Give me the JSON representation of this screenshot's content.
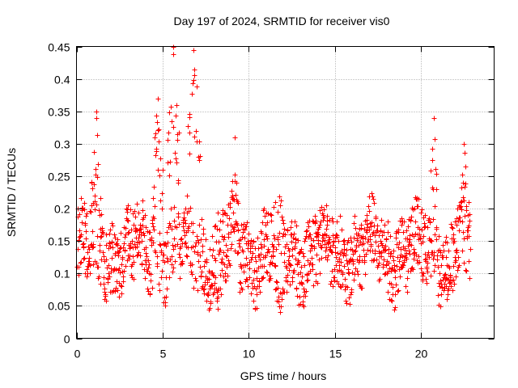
{
  "chart_data": {
    "type": "scatter",
    "title": "Day 197 of 2024, SRMTID for receiver vis0",
    "xlabel": "GPS time / hours",
    "ylabel": "SRMTID / TECUs",
    "xlim": [
      0,
      24.25
    ],
    "ylim": [
      0,
      0.45
    ],
    "xticks": [
      0,
      5,
      10,
      15,
      20
    ],
    "xtick_labels": [
      "0",
      "5",
      "10",
      "15",
      "20"
    ],
    "yticks": [
      0,
      0.05,
      0.1,
      0.15,
      0.2,
      0.25,
      0.3,
      0.35,
      0.4,
      0.45
    ],
    "ytick_labels": [
      "0",
      "0.05",
      "0.1",
      "0.15",
      "0.2",
      "0.25",
      "0.3",
      "0.35",
      "0.4",
      "0.45"
    ],
    "grid": true,
    "marker": "+",
    "color": "#ff0000",
    "series": [
      {
        "name": "vis0",
        "note": "dense scatter of SRMTID samples over ~23 h; baseline 0.10–0.20 TECU with excursions",
        "x_range": [
          0.05,
          22.85
        ],
        "baseline_y_range": [
          0.1,
          0.2
        ],
        "peaks": [
          {
            "x": 1.15,
            "y": 0.35
          },
          {
            "x": 4.7,
            "y": 0.37
          },
          {
            "x": 5.6,
            "y": 0.45
          },
          {
            "x": 6.8,
            "y": 0.445
          },
          {
            "x": 9.2,
            "y": 0.31
          },
          {
            "x": 20.75,
            "y": 0.34
          },
          {
            "x": 22.5,
            "y": 0.3
          }
        ],
        "minima": [
          {
            "x": 8.2,
            "y": 0.045
          },
          {
            "x": 11.8,
            "y": 0.04
          },
          {
            "x": 21.5,
            "y": 0.06
          }
        ]
      }
    ]
  }
}
